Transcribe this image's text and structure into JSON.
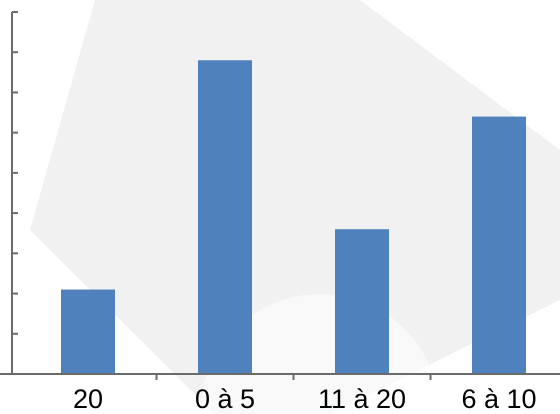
{
  "chart_data": {
    "type": "bar",
    "categories": [
      "20",
      "0 à 5",
      "11 à 20",
      "6 à 10"
    ],
    "values": [
      2.1,
      7.8,
      3.6,
      6.4
    ],
    "title": "",
    "xlabel": "",
    "ylabel": "",
    "ylim": [
      0,
      9
    ],
    "y_ticks": 9,
    "grid": false,
    "legend": "none",
    "colors": {
      "bar": "#4f81bd",
      "axis": "#6b6b6b",
      "watermark": "#f1f1f1",
      "label": "#000000"
    }
  }
}
